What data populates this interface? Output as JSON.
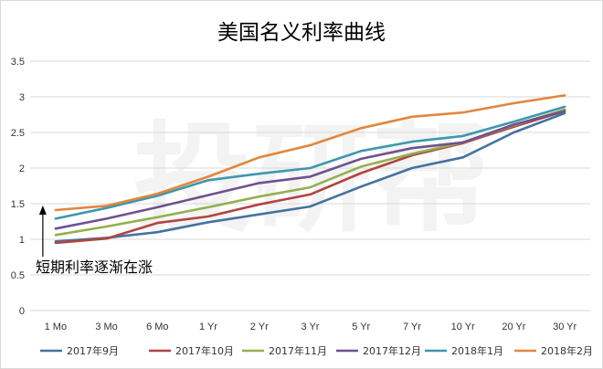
{
  "chart_data": {
    "type": "line",
    "title": "美国名义利率曲线",
    "categories": [
      "1 Mo",
      "3 Mo",
      "6 Mo",
      "1 Yr",
      "2 Yr",
      "3 Yr",
      "5 Yr",
      "7 Yr",
      "10 Yr",
      "20 Yr",
      "30 Yr"
    ],
    "ylim": [
      0,
      3.5
    ],
    "yticks": [
      "0",
      "0.5",
      "1",
      "1.5",
      "2",
      "2.5",
      "3",
      "3.5"
    ],
    "grid": true,
    "legend_position": "bottom",
    "series": [
      {
        "name": "2017年9月",
        "color": "#4472a0",
        "values": [
          0.97,
          1.02,
          1.1,
          1.24,
          1.35,
          1.46,
          1.74,
          2.0,
          2.15,
          2.5,
          2.77
        ]
      },
      {
        "name": "2017年10月",
        "color": "#b24441",
        "values": [
          0.95,
          1.01,
          1.23,
          1.32,
          1.49,
          1.63,
          1.93,
          2.18,
          2.35,
          2.58,
          2.8
        ]
      },
      {
        "name": "2017年11月",
        "color": "#93b04f",
        "values": [
          1.06,
          1.18,
          1.31,
          1.45,
          1.6,
          1.73,
          2.02,
          2.2,
          2.36,
          2.6,
          2.82
        ]
      },
      {
        "name": "2017年12月",
        "color": "#6f518e",
        "values": [
          1.15,
          1.29,
          1.45,
          1.62,
          1.79,
          1.88,
          2.13,
          2.28,
          2.36,
          2.61,
          2.8
        ]
      },
      {
        "name": "2018年1月",
        "color": "#3e97ae",
        "values": [
          1.29,
          1.44,
          1.61,
          1.83,
          1.92,
          2.0,
          2.24,
          2.37,
          2.45,
          2.65,
          2.86
        ]
      },
      {
        "name": "2018年2月",
        "color": "#e1873c",
        "values": [
          1.41,
          1.47,
          1.64,
          1.88,
          2.15,
          2.32,
          2.56,
          2.72,
          2.78,
          2.91,
          3.02
        ]
      }
    ],
    "annotation": "短期利率逐渐在涨",
    "watermark": "投研帮"
  }
}
